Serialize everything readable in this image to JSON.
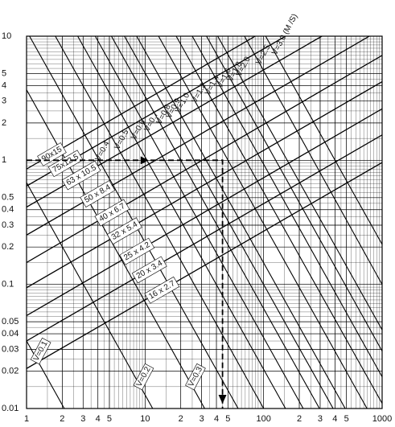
{
  "chart_data": {
    "type": "nomograph",
    "xlog": true,
    "ylog": true,
    "grid": true,
    "color": "#000000",
    "xlim": [
      1,
      1000
    ],
    "ylim": [
      0.01,
      10
    ],
    "xticks": [
      1,
      2,
      3,
      4,
      5,
      10,
      {
        "value": 20,
        "label": "2"
      },
      {
        "value": 30,
        "label": "3"
      },
      {
        "value": 40,
        "label": "4"
      },
      {
        "value": 50,
        "label": "5"
      },
      100,
      {
        "value": 200,
        "label": "2"
      },
      {
        "value": 300,
        "label": "3"
      },
      {
        "value": 400,
        "label": "4"
      },
      {
        "value": 500,
        "label": "5"
      },
      1000
    ],
    "yticks": [
      10,
      5,
      4,
      3,
      2,
      1,
      0.5,
      0.4,
      0.3,
      0.2,
      0.1,
      0.05,
      0.04,
      0.03,
      0.02,
      0.01
    ],
    "pipe_lines": [
      {
        "name": "90x15",
        "x": [
          1,
          85
        ],
        "y": [
          0.85,
          10
        ]
      },
      {
        "name": "75x12.5",
        "x": [
          1,
          153
        ],
        "y": [
          0.62,
          10
        ]
      },
      {
        "name": "63 x 10.5",
        "x": [
          1,
          310
        ],
        "y": [
          0.42,
          10
        ]
      },
      {
        "name": "50 x 8.4",
        "x": [
          1,
          780
        ],
        "y": [
          0.25,
          10
        ]
      },
      {
        "name": "40 x 6.7",
        "x": [
          1,
          1000
        ],
        "y": [
          0.15,
          7
        ]
      },
      {
        "name": "32 x 5.4",
        "x": [
          1,
          1000
        ],
        "y": [
          0.094,
          4.3
        ]
      },
      {
        "name": "25 x 4.2",
        "x": [
          1,
          1000
        ],
        "y": [
          0.056,
          2.6
        ]
      },
      {
        "name": "20 x 3.4",
        "x": [
          1,
          1000
        ],
        "y": [
          0.035,
          1.6
        ]
      },
      {
        "name": "16 x 2.7",
        "x": [
          1,
          1000
        ],
        "y": [
          0.021,
          0.96
        ]
      }
    ],
    "velocity_lines": [
      {
        "name": "V=0.1",
        "x": [
          1,
          2.08
        ],
        "y": [
          0.035,
          0.01
        ]
      },
      {
        "name": "V=0.2",
        "x": [
          1,
          11.6
        ],
        "y": [
          0.66,
          0.01
        ]
      },
      {
        "name": "V=0.3",
        "x": [
          1,
          31.8
        ],
        "y": [
          3.7,
          0.01
        ]
      },
      {
        "name": "V=0.4",
        "x": [
          1.06,
          61
        ],
        "y": [
          10,
          0.01
        ]
      },
      {
        "name": "V=0.5",
        "x": [
          1.75,
          100
        ],
        "y": [
          10,
          0.01
        ]
      },
      {
        "name": "V=0.6",
        "x": [
          2.7,
          153
        ],
        "y": [
          10,
          0.01
        ]
      },
      {
        "name": "V=0.7",
        "x": [
          3.8,
          216
        ],
        "y": [
          10,
          0.01
        ]
      },
      {
        "name": "V=0.8",
        "x": [
          5.2,
          296
        ],
        "y": [
          10,
          0.01
        ]
      },
      {
        "name": "V=0.9",
        "x": [
          6.7,
          386
        ],
        "y": [
          10,
          0.01
        ]
      },
      {
        "name": "V=1.0",
        "x": [
          8.5,
          488
        ],
        "y": [
          10,
          0.01
        ]
      },
      {
        "name": "V=1.2",
        "x": [
          13,
          745
        ],
        "y": [
          10,
          0.01
        ]
      },
      {
        "name": "V=1.4",
        "x": [
          18.3,
          1000
        ],
        "y": [
          10,
          0.011
        ]
      },
      {
        "name": "V=1.6",
        "x": [
          25,
          1000
        ],
        "y": [
          10,
          0.018
        ]
      },
      {
        "name": "V=1.8",
        "x": [
          33,
          1000
        ],
        "y": [
          10,
          0.029
        ]
      },
      {
        "name": "V=2.0",
        "x": [
          41,
          1000
        ],
        "y": [
          10,
          0.043
        ]
      },
      {
        "name": "V=2.5",
        "x": [
          69,
          1000
        ],
        "y": [
          10,
          0.1
        ]
      },
      {
        "name": "V=3.0 (M /S)",
        "x": [
          104,
          1000
        ],
        "y": [
          10,
          0.21
        ]
      }
    ],
    "example_path": {
      "x": [
        1,
        45,
        45
      ],
      "y": [
        1,
        1,
        0.01
      ]
    }
  }
}
